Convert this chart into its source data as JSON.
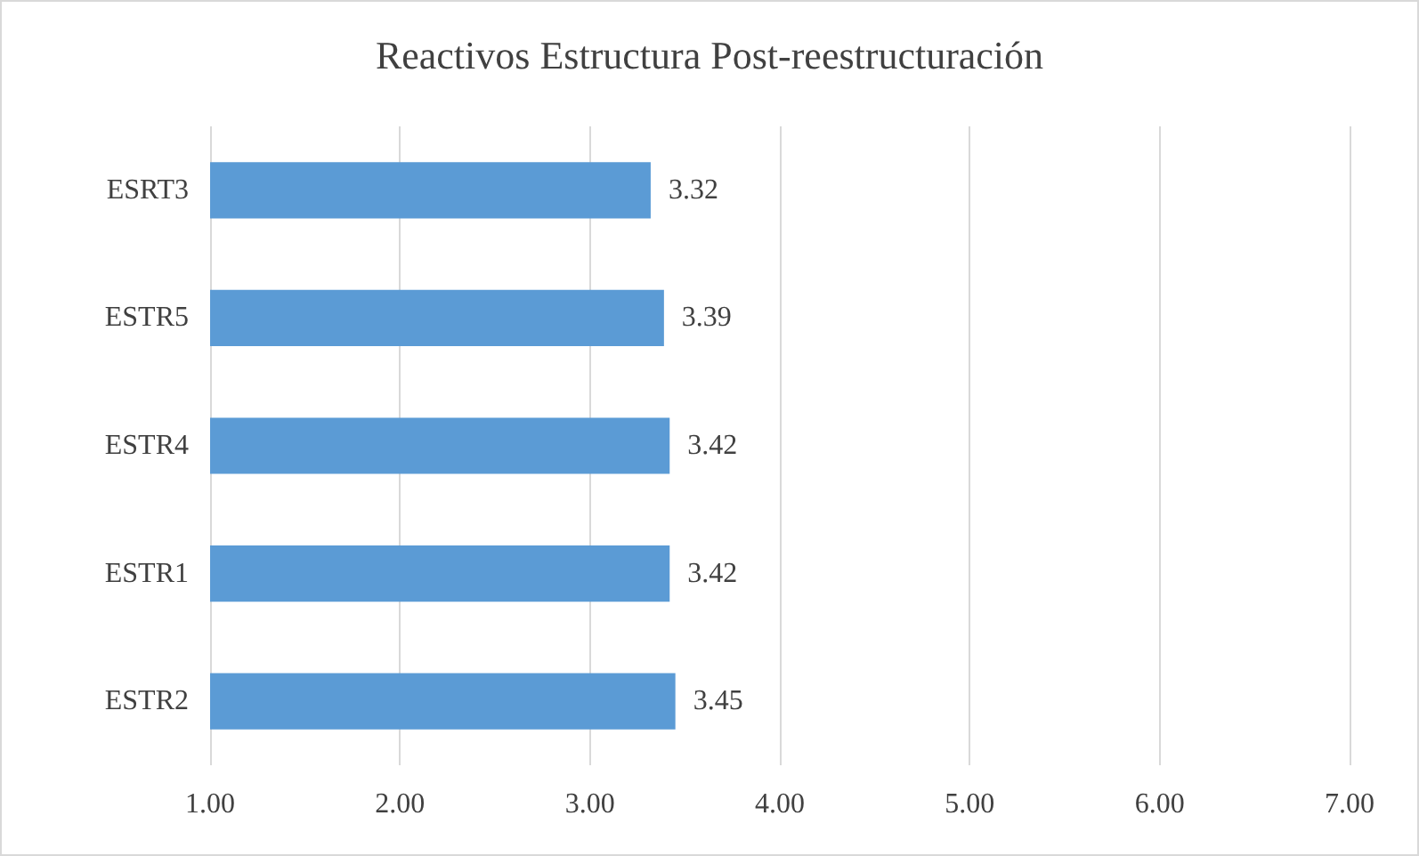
{
  "chart_data": {
    "type": "bar",
    "orientation": "horizontal",
    "title": "Reactivos Estructura Post-reestructuración",
    "categories": [
      "ESRT3",
      "ESTR5",
      "ESTR4",
      "ESTR1",
      "ESTR2"
    ],
    "values": [
      3.32,
      3.39,
      3.42,
      3.42,
      3.45
    ],
    "color": "#5b9bd5",
    "xlim": [
      1,
      7
    ],
    "xticks": [
      {
        "value": 1,
        "label": "1.00"
      },
      {
        "value": 2,
        "label": "2.00"
      },
      {
        "value": 3,
        "label": "3.00"
      },
      {
        "value": 4,
        "label": "4.00"
      },
      {
        "value": 5,
        "label": "5.00"
      },
      {
        "value": 6,
        "label": "6.00"
      },
      {
        "value": 7,
        "label": "7.00"
      }
    ],
    "grid": "x",
    "data_labels": true
  }
}
